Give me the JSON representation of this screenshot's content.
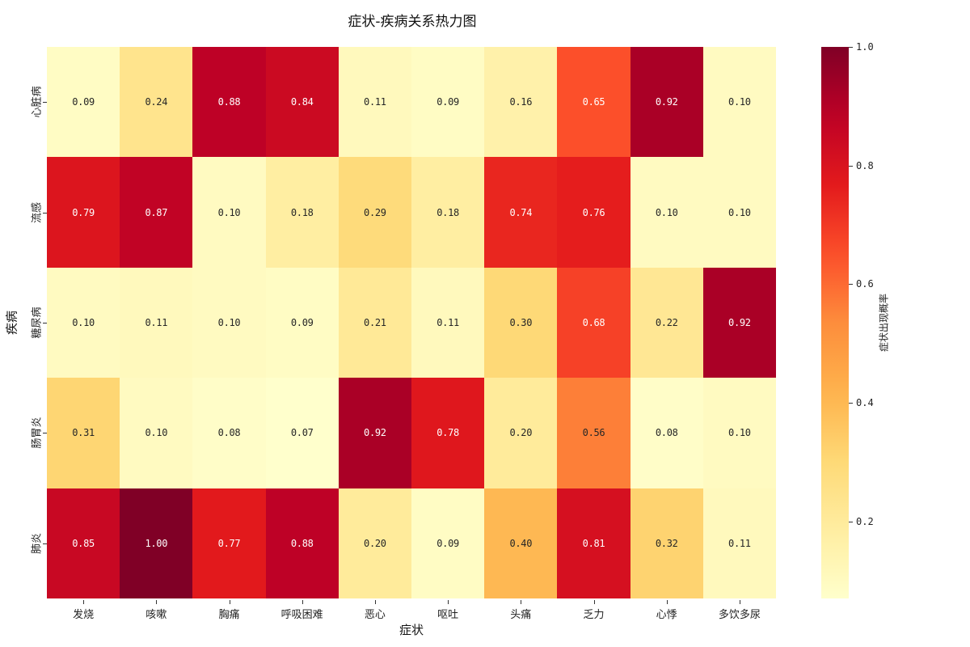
{
  "chart_data": {
    "type": "heatmap",
    "title": "症状-疾病关系热力图",
    "xlabel": "症状",
    "ylabel": "疾病",
    "x": [
      "发烧",
      "咳嗽",
      "胸痛",
      "呼吸困难",
      "恶心",
      "呕吐",
      "头痛",
      "乏力",
      "心悸",
      "多饮多尿"
    ],
    "y": [
      "心脏病",
      "流感",
      "糖尿病",
      "肠胃炎",
      "肺炎"
    ],
    "values": [
      [
        0.09,
        0.24,
        0.88,
        0.84,
        0.11,
        0.09,
        0.16,
        0.65,
        0.92,
        0.1
      ],
      [
        0.79,
        0.87,
        0.1,
        0.18,
        0.29,
        0.18,
        0.74,
        0.76,
        0.1,
        0.1
      ],
      [
        0.1,
        0.11,
        0.1,
        0.09,
        0.21,
        0.11,
        0.3,
        0.68,
        0.22,
        0.92
      ],
      [
        0.31,
        0.1,
        0.08,
        0.07,
        0.92,
        0.78,
        0.2,
        0.56,
        0.08,
        0.1
      ],
      [
        0.85,
        1.0,
        0.77,
        0.88,
        0.2,
        0.09,
        0.4,
        0.81,
        0.32,
        0.11
      ]
    ],
    "annotation_format": "0.00",
    "colormap": "YlOrRd",
    "colorbar": {
      "label": "症状出现概率",
      "vmin": 0.07,
      "vmax": 1.0,
      "ticks": [
        0.2,
        0.4,
        0.6,
        0.8,
        1.0
      ],
      "tick_labels": [
        "0.2",
        "0.4",
        "0.6",
        "0.8",
        "1.0"
      ]
    }
  }
}
